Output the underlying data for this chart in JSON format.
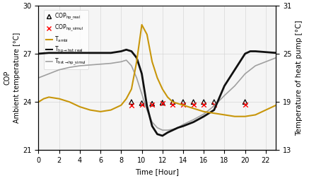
{
  "cop_real_x": [
    9,
    10,
    11,
    12,
    13,
    14,
    15,
    16,
    17,
    20
  ],
  "cop_real_y": [
    2.0,
    1.95,
    1.93,
    1.97,
    2.0,
    2.0,
    2.0,
    2.0,
    2.0,
    2.0
  ],
  "cop_simul_x": [
    9,
    10,
    11,
    12,
    13,
    14,
    15,
    16,
    17,
    20
  ],
  "cop_simul_y": [
    1.87,
    1.88,
    1.88,
    1.95,
    1.88,
    1.9,
    1.9,
    1.9,
    1.9,
    1.9
  ],
  "t_ambi_x": [
    0,
    0.5,
    1,
    2,
    3,
    4,
    5,
    6,
    7,
    8,
    8.5,
    9,
    9.5,
    10,
    10.5,
    11,
    11.5,
    12,
    12.5,
    13,
    13.5,
    14,
    15,
    16,
    17,
    18,
    19,
    20,
    21,
    22,
    23,
    23.5
  ],
  "t_ambi_y": [
    24.0,
    24.2,
    24.3,
    24.2,
    24.0,
    23.7,
    23.5,
    23.4,
    23.5,
    23.8,
    24.2,
    24.8,
    26.5,
    28.8,
    28.2,
    26.5,
    25.5,
    24.8,
    24.3,
    24.0,
    23.9,
    23.8,
    23.6,
    23.4,
    23.3,
    23.2,
    23.1,
    23.1,
    23.2,
    23.5,
    23.8,
    24.0
  ],
  "t_hp_hst_real_x": [
    0,
    1,
    2,
    3,
    4,
    5,
    6,
    7,
    8,
    8.5,
    9,
    9.5,
    10,
    10.5,
    11,
    11.5,
    12,
    12.5,
    13,
    13.5,
    14,
    15,
    16,
    17,
    17.5,
    18,
    19,
    20,
    20.5,
    21,
    22,
    23,
    23.5
  ],
  "t_hp_hst_real_y": [
    25.0,
    25.1,
    25.1,
    25.1,
    25.1,
    25.1,
    25.1,
    25.1,
    25.3,
    25.5,
    25.3,
    24.5,
    22.5,
    18.5,
    16.0,
    15.0,
    14.8,
    15.2,
    15.5,
    15.8,
    16.0,
    16.5,
    17.2,
    18.0,
    19.5,
    21.0,
    23.0,
    25.0,
    25.3,
    25.3,
    25.2,
    25.1,
    25.2
  ],
  "t_hst_hp_simul_x": [
    0,
    1,
    2,
    3,
    4,
    5,
    6,
    7,
    8,
    8.5,
    9,
    9.5,
    10,
    10.5,
    11,
    11.5,
    12,
    12.5,
    13,
    13.5,
    14,
    15,
    16,
    17,
    18,
    19,
    20,
    21,
    22,
    23,
    23.5
  ],
  "t_hst_hp_simul_y": [
    22.0,
    22.5,
    23.0,
    23.3,
    23.5,
    23.6,
    23.7,
    23.8,
    24.0,
    24.2,
    23.5,
    22.0,
    20.0,
    18.0,
    16.5,
    15.8,
    15.5,
    15.5,
    15.6,
    15.8,
    16.2,
    16.8,
    17.5,
    18.5,
    19.8,
    21.0,
    22.5,
    23.5,
    24.0,
    24.5,
    24.8
  ],
  "cop_ylim": [
    0,
    6
  ],
  "cop_yticks": [
    0,
    2,
    4,
    6
  ],
  "tambi_ylim": [
    21,
    30
  ],
  "tambi_yticks": [
    21,
    24,
    27,
    30
  ],
  "temp_hp_ylim": [
    13,
    31
  ],
  "temp_hp_yticks": [
    13,
    19,
    25,
    31
  ],
  "xlim": [
    0,
    23
  ],
  "xticks": [
    0,
    2,
    4,
    6,
    8,
    10,
    12,
    14,
    16,
    18,
    20,
    22
  ],
  "t_ambi_color": "#C8960A",
  "t_hp_hst_real_color": "#111111",
  "t_hst_hp_simul_color": "#A0A0A0",
  "cop_real_color": "#000000",
  "cop_simul_color": "#FF0000",
  "xlabel": "Time [Hour]",
  "ylabel_cop": "COP",
  "ylabel_ambi": "Ambient temperature [°C]",
  "ylabel_right": "Temperature of heat pump [°C]",
  "bg_color": "#F5F5F5"
}
